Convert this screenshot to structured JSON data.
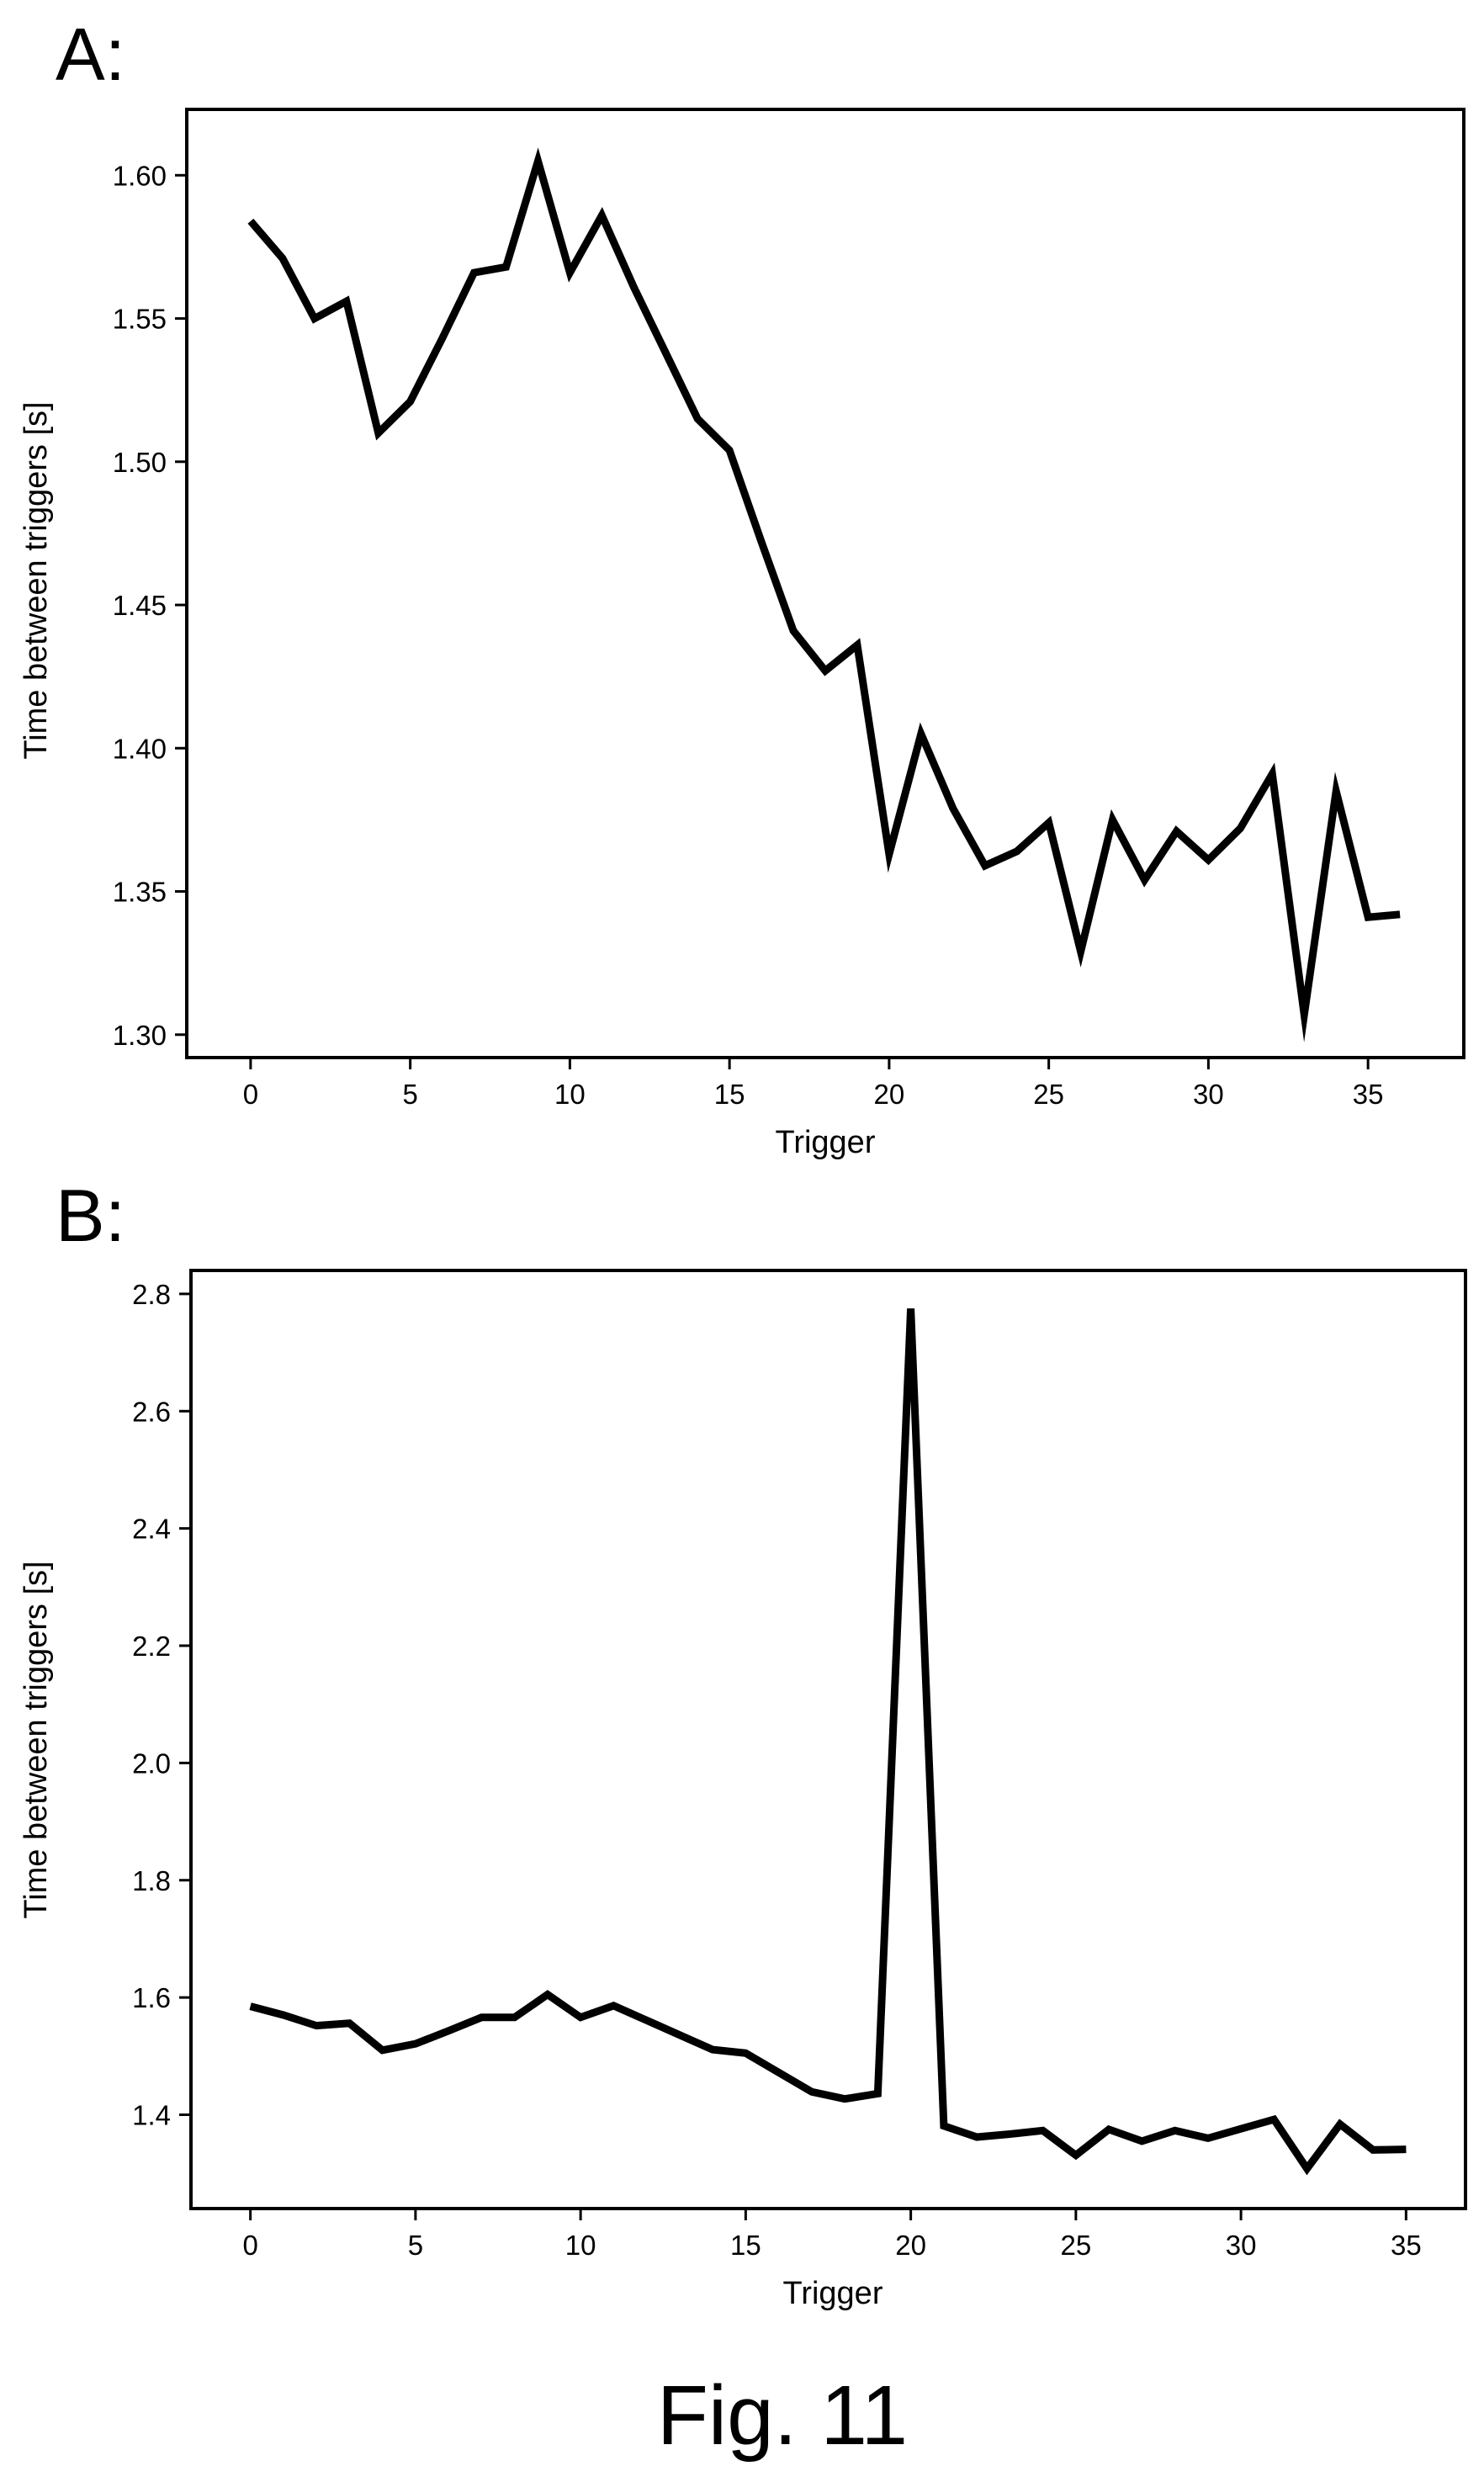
{
  "figure": {
    "caption": "Fig. 11"
  },
  "chart_data": [
    {
      "panel": "A:",
      "type": "line",
      "xlabel": "Trigger",
      "ylabel": "Time between triggers [s]",
      "xlim": [
        -2,
        38
      ],
      "ylim": [
        1.292,
        1.623
      ],
      "xticks": [
        0,
        5,
        10,
        15,
        20,
        25,
        30,
        35
      ],
      "yticks": [
        1.3,
        1.35,
        1.4,
        1.45,
        1.5,
        1.55,
        1.6
      ],
      "ytick_labels": [
        "1.30",
        "1.35",
        "1.40",
        "1.45",
        "1.50",
        "1.55",
        "1.60"
      ],
      "grid": false,
      "x": [
        0,
        1,
        2,
        3,
        4,
        5,
        6,
        7,
        8,
        9,
        10,
        11,
        12,
        13,
        14,
        15,
        16,
        17,
        18,
        19,
        20,
        21,
        22,
        23,
        24,
        25,
        26,
        27,
        28,
        29,
        30,
        31,
        32,
        33,
        34,
        35,
        36
      ],
      "y": [
        1.584,
        1.571,
        1.55,
        1.556,
        1.51,
        1.521,
        1.543,
        1.566,
        1.568,
        1.605,
        1.566,
        1.586,
        1.561,
        1.538,
        1.515,
        1.504,
        1.472,
        1.441,
        1.427,
        1.436,
        1.363,
        1.405,
        1.379,
        1.359,
        1.364,
        1.374,
        1.329,
        1.375,
        1.354,
        1.371,
        1.361,
        1.372,
        1.391,
        1.307,
        1.385,
        1.341,
        1.342
      ]
    },
    {
      "panel": "B:",
      "type": "line",
      "xlabel": "Trigger",
      "ylabel": "Time between triggers [s]",
      "xlim": [
        -1.8,
        36.8
      ],
      "ylim": [
        1.24,
        2.84
      ],
      "xticks": [
        0,
        5,
        10,
        15,
        20,
        25,
        30,
        35
      ],
      "yticks": [
        1.4,
        1.6,
        1.8,
        2.0,
        2.2,
        2.4,
        2.6,
        2.8
      ],
      "ytick_labels": [
        "1.4",
        "1.6",
        "1.8",
        "2.0",
        "2.2",
        "2.4",
        "2.6",
        "2.8"
      ],
      "grid": false,
      "x": [
        0,
        1,
        2,
        3,
        4,
        5,
        6,
        7,
        8,
        9,
        10,
        11,
        12,
        13,
        14,
        15,
        16,
        17,
        18,
        19,
        20,
        21,
        22,
        23,
        24,
        25,
        26,
        27,
        28,
        29,
        30,
        31,
        32,
        33,
        34,
        35
      ],
      "y": [
        1.585,
        1.57,
        1.552,
        1.556,
        1.51,
        1.521,
        1.543,
        1.566,
        1.566,
        1.605,
        1.566,
        1.586,
        1.561,
        1.536,
        1.511,
        1.505,
        1.472,
        1.439,
        1.427,
        1.436,
        2.775,
        1.381,
        1.362,
        1.367,
        1.373,
        1.331,
        1.375,
        1.355,
        1.373,
        1.36,
        1.376,
        1.392,
        1.308,
        1.384,
        1.34,
        1.341
      ]
    }
  ]
}
